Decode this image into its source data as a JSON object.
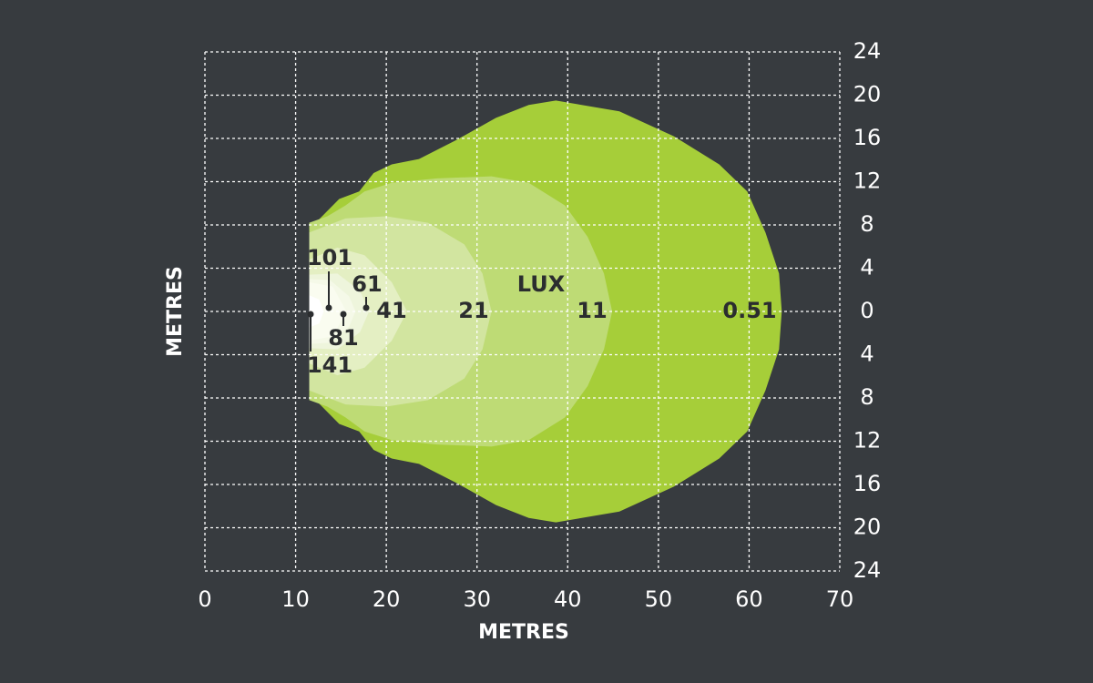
{
  "chart_data": {
    "type": "contour",
    "x_label": "METRES",
    "y_label": "METRES",
    "unit_label": "LUX",
    "xlim": [
      0,
      70
    ],
    "xticks": [
      0,
      10,
      20,
      30,
      40,
      50,
      60,
      70
    ],
    "ylim": [
      -24,
      24
    ],
    "yticks": [
      24,
      20,
      16,
      12,
      8,
      4,
      0,
      {
        "value": -4,
        "label": "4"
      },
      {
        "value": -8,
        "label": "8"
      },
      {
        "value": -12,
        "label": "12"
      },
      {
        "value": -16,
        "label": "16"
      },
      {
        "value": -20,
        "label": "20"
      },
      {
        "value": -24,
        "label": "24"
      }
    ],
    "grid": true,
    "contours": [
      {
        "name": "0.51",
        "color": "#a6ce39",
        "x": [
          11.5,
          14.8,
          17,
          18.6,
          20.6,
          23.6,
          27.6,
          32.1,
          35.7,
          38.7,
          45.7,
          51.7,
          56.7,
          59.8,
          61.8,
          63.3,
          63.6,
          63.3,
          61.8,
          59.8,
          56.7,
          51.7,
          45.7,
          38.7,
          35.7,
          32.1,
          27.6,
          23.6,
          20.6,
          18.6,
          17,
          14.8,
          11.5
        ],
        "y": [
          7.6,
          10.4,
          11.1,
          12.8,
          13.6,
          14.1,
          15.8,
          17.9,
          19.1,
          19.5,
          18.5,
          16.2,
          13.6,
          11.1,
          7.3,
          3.5,
          0,
          -3.5,
          -7.3,
          -11.1,
          -13.6,
          -16.2,
          -18.5,
          -19.5,
          -19.1,
          -17.9,
          -15.8,
          -14.1,
          -13.6,
          -12.8,
          -11.1,
          -10.4,
          -7.6
        ]
      },
      {
        "name": "11",
        "color": "#bedb75",
        "x": [
          11.5,
          13.5,
          15.5,
          17.6,
          20.6,
          25.6,
          31.6,
          35.7,
          39.7,
          42.2,
          44,
          44.9,
          44,
          42.2,
          39.7,
          35.7,
          31.6,
          25.6,
          20.6,
          17.6,
          15.5,
          13.5,
          11.5
        ],
        "y": [
          8.2,
          8.8,
          9.8,
          11.1,
          11.9,
          12.3,
          12.5,
          11.9,
          9.8,
          6.9,
          3.5,
          0,
          -3.5,
          -6.9,
          -9.8,
          -11.9,
          -12.5,
          -12.3,
          -11.9,
          -11.1,
          -9.8,
          -8.8,
          -8.2
        ]
      },
      {
        "name": "21",
        "color": "#d2e5a0",
        "x": [
          11.5,
          15.5,
          20,
          24.6,
          28.6,
          30.6,
          31.6,
          30.6,
          28.6,
          24.6,
          20,
          15.5,
          11.5
        ],
        "y": [
          7.3,
          8.6,
          8.8,
          8.2,
          6.2,
          3.5,
          0,
          -3.5,
          -6.2,
          -8.2,
          -8.8,
          -8.6,
          -7.3
        ]
      },
      {
        "name": "41",
        "color": "#e4efc3",
        "x": [
          11.5,
          14.6,
          17.6,
          20.6,
          22.3,
          20.6,
          17.6,
          14.6,
          11.5
        ],
        "y": [
          4.8,
          5.9,
          5.2,
          2.7,
          0,
          -2.7,
          -5.2,
          -5.9,
          -4.8
        ]
      },
      {
        "name": "61",
        "color": "#eef5dc",
        "x": [
          11.5,
          14.6,
          17.1,
          18.1,
          17.1,
          14.6,
          11.5
        ],
        "y": [
          3.4,
          3.5,
          1.9,
          0,
          -1.9,
          -3.5,
          -3.4
        ]
      },
      {
        "name": "81",
        "color": "#f5f9e8",
        "x": [
          11.5,
          13.8,
          15.9,
          16.6,
          15.9,
          13.8,
          11.5
        ],
        "y": [
          3,
          2.9,
          1.4,
          0,
          -1.4,
          -2.9,
          -3
        ]
      },
      {
        "name": "101",
        "color": "#fafcf0",
        "x": [
          11.5,
          14.1,
          15.6,
          14.1,
          11.5
        ],
        "y": [
          2.7,
          2.3,
          0,
          -2.3,
          -2.7
        ]
      },
      {
        "name": "141",
        "color": "#ffffff",
        "x": [
          11.5,
          12.6,
          13.1,
          12.6,
          11.5
        ],
        "y": [
          1.5,
          1.1,
          0,
          -1.1,
          -1.5
        ]
      }
    ]
  }
}
